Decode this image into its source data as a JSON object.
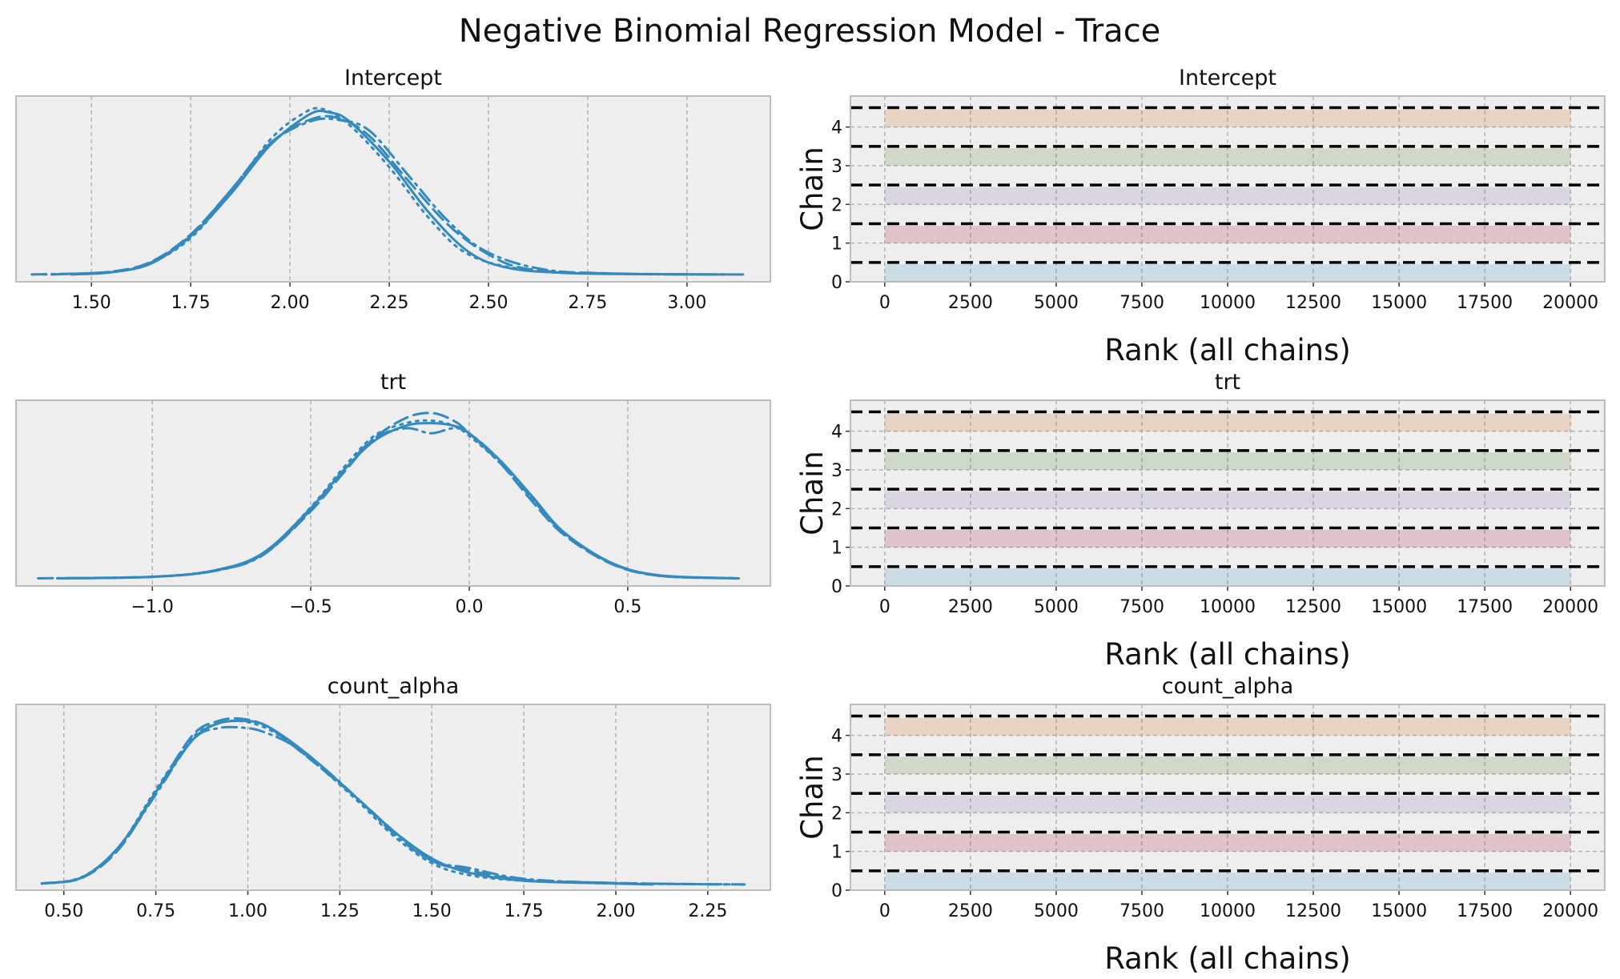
{
  "title": "Negative Binomial Regression Model - Trace",
  "colors": {
    "kde": "#348abd",
    "panel_bg": "#eeeeee",
    "grid": "#b2b2b2",
    "spine": "#bcbcbc",
    "ref_line": "#000000",
    "chain_colors": [
      "#348abd",
      "#a60628",
      "#7a68a6",
      "#467821",
      "#d55e00"
    ]
  },
  "chart_data": [
    {
      "type": "line",
      "title": "Intercept",
      "panel": "posterior-density",
      "xlim": [
        1.31,
        3.21
      ],
      "ylim": [
        -0.2,
        4.9
      ],
      "xticks": [
        1.5,
        1.75,
        2.0,
        2.25,
        2.5,
        2.75,
        3.0
      ],
      "xtick_labels": [
        "1.50",
        "1.75",
        "2.00",
        "2.25",
        "2.50",
        "2.75",
        "3.00"
      ],
      "y_axis_visible": false,
      "grid": "x",
      "series": [
        {
          "chain": 0,
          "linestyle": "solid",
          "x": [
            1.45,
            1.55,
            1.65,
            1.75,
            1.85,
            1.95,
            2.05,
            2.1,
            2.15,
            2.25,
            2.35,
            2.45,
            2.55,
            2.7,
            2.9,
            3.1
          ],
          "y": [
            0.0,
            0.06,
            0.3,
            1.05,
            2.2,
            3.55,
            4.4,
            4.45,
            4.2,
            3.1,
            1.7,
            0.62,
            0.18,
            0.04,
            0.01,
            0.0
          ]
        },
        {
          "chain": 1,
          "linestyle": "dashed",
          "x": [
            1.4,
            1.55,
            1.65,
            1.75,
            1.85,
            1.95,
            2.05,
            2.12,
            2.2,
            2.3,
            2.4,
            2.5,
            2.6,
            2.8,
            3.0
          ],
          "y": [
            0.0,
            0.08,
            0.35,
            1.1,
            2.3,
            3.6,
            4.25,
            4.3,
            3.8,
            2.55,
            1.35,
            0.55,
            0.15,
            0.03,
            0.0
          ]
        },
        {
          "chain": 2,
          "linestyle": "dotted",
          "x": [
            1.38,
            1.55,
            1.65,
            1.75,
            1.85,
            1.95,
            2.03,
            2.08,
            2.15,
            2.25,
            2.35,
            2.45,
            2.6,
            2.8,
            3.1
          ],
          "y": [
            0.0,
            0.07,
            0.32,
            1.0,
            2.25,
            3.7,
            4.4,
            4.55,
            4.1,
            2.95,
            1.55,
            0.55,
            0.12,
            0.02,
            0.0
          ]
        },
        {
          "chain": 3,
          "linestyle": "dashdot",
          "x": [
            1.35,
            1.55,
            1.65,
            1.75,
            1.85,
            1.95,
            2.05,
            2.12,
            2.2,
            2.3,
            2.4,
            2.5,
            2.65,
            2.85,
            3.15
          ],
          "y": [
            0.0,
            0.07,
            0.33,
            1.08,
            2.3,
            3.6,
            4.2,
            4.25,
            3.95,
            2.7,
            1.45,
            0.6,
            0.12,
            0.02,
            0.0
          ]
        }
      ]
    },
    {
      "type": "bar",
      "title": "Intercept",
      "panel": "rank-plot",
      "xlabel": "Rank (all chains)",
      "ylabel": "Chain",
      "xlim": [
        -1000,
        21000
      ],
      "ylim": [
        0,
        4.8
      ],
      "xticks": [
        0,
        2500,
        5000,
        7500,
        10000,
        12500,
        15000,
        17500,
        20000
      ],
      "yticks": [
        0,
        1,
        2,
        3,
        4
      ],
      "chains": [
        0,
        1,
        2,
        3,
        4
      ],
      "rank_range": [
        0,
        20000
      ],
      "reference_lines_y": [
        0.5,
        1.5,
        2.5,
        3.5,
        4.5
      ],
      "grid": "both"
    },
    {
      "type": "line",
      "title": "trt",
      "panel": "posterior-density",
      "xlim": [
        -1.43,
        0.95
      ],
      "ylim": [
        -0.15,
        3.5
      ],
      "xticks": [
        -1.0,
        -0.5,
        0.0,
        0.5
      ],
      "xtick_labels": [
        "−1.0",
        "−0.5",
        "0.0",
        "0.5"
      ],
      "y_axis_visible": false,
      "grid": "x",
      "series": [
        {
          "chain": 0,
          "linestyle": "solid",
          "x": [
            -1.3,
            -1.0,
            -0.8,
            -0.65,
            -0.5,
            -0.4,
            -0.3,
            -0.2,
            -0.12,
            -0.05,
            0.0,
            0.1,
            0.2,
            0.3,
            0.45,
            0.6,
            0.85
          ],
          "y": [
            0.0,
            0.03,
            0.16,
            0.5,
            1.38,
            2.1,
            2.7,
            3.0,
            3.05,
            3.0,
            2.85,
            2.3,
            1.6,
            0.9,
            0.3,
            0.06,
            0.0
          ]
        },
        {
          "chain": 1,
          "linestyle": "dashed",
          "x": [
            -1.3,
            -1.0,
            -0.8,
            -0.65,
            -0.5,
            -0.4,
            -0.3,
            -0.2,
            -0.12,
            -0.05,
            0.0,
            0.1,
            0.2,
            0.3,
            0.45,
            0.6,
            0.85
          ],
          "y": [
            0.0,
            0.03,
            0.15,
            0.47,
            1.32,
            2.05,
            2.75,
            3.15,
            3.25,
            3.1,
            2.85,
            2.25,
            1.5,
            0.85,
            0.28,
            0.05,
            0.0
          ]
        },
        {
          "chain": 2,
          "linestyle": "dotted",
          "x": [
            -1.3,
            -1.0,
            -0.8,
            -0.65,
            -0.5,
            -0.4,
            -0.3,
            -0.2,
            -0.12,
            -0.05,
            0.0,
            0.1,
            0.2,
            0.3,
            0.45,
            0.6,
            0.85
          ],
          "y": [
            0.0,
            0.03,
            0.16,
            0.48,
            1.4,
            2.15,
            2.8,
            3.05,
            3.1,
            3.0,
            2.8,
            2.25,
            1.55,
            0.88,
            0.3,
            0.06,
            0.0
          ]
        },
        {
          "chain": 3,
          "linestyle": "dashdot",
          "x": [
            -1.36,
            -1.0,
            -0.8,
            -0.65,
            -0.5,
            -0.4,
            -0.3,
            -0.2,
            -0.12,
            -0.05,
            0.0,
            0.1,
            0.2,
            0.3,
            0.45,
            0.6,
            0.85
          ],
          "y": [
            0.0,
            0.03,
            0.15,
            0.46,
            1.35,
            2.1,
            2.75,
            2.95,
            2.85,
            2.95,
            2.85,
            2.3,
            1.55,
            0.88,
            0.29,
            0.05,
            0.0
          ]
        }
      ]
    },
    {
      "type": "bar",
      "title": "trt",
      "panel": "rank-plot",
      "xlabel": "Rank (all chains)",
      "ylabel": "Chain",
      "xlim": [
        -1000,
        21000
      ],
      "ylim": [
        0,
        4.8
      ],
      "xticks": [
        0,
        2500,
        5000,
        7500,
        10000,
        12500,
        15000,
        17500,
        20000
      ],
      "yticks": [
        0,
        1,
        2,
        3,
        4
      ],
      "chains": [
        0,
        1,
        2,
        3,
        4
      ],
      "rank_range": [
        0,
        20000
      ],
      "reference_lines_y": [
        0.5,
        1.5,
        2.5,
        3.5,
        4.5
      ],
      "grid": "both"
    },
    {
      "type": "line",
      "title": "count_alpha",
      "panel": "posterior-density",
      "xlim": [
        0.37,
        2.42
      ],
      "ylim": [
        -0.12,
        3.8
      ],
      "xticks": [
        0.5,
        0.75,
        1.0,
        1.25,
        1.5,
        1.75,
        2.0,
        2.25
      ],
      "xtick_labels": [
        "0.50",
        "0.75",
        "1.00",
        "1.25",
        "1.50",
        "1.75",
        "2.00",
        "2.25"
      ],
      "y_axis_visible": false,
      "grid": "x",
      "series": [
        {
          "chain": 0,
          "linestyle": "solid",
          "x": [
            0.44,
            0.55,
            0.65,
            0.75,
            0.85,
            0.92,
            1.0,
            1.05,
            1.12,
            1.2,
            1.3,
            1.4,
            1.5,
            1.6,
            1.75,
            2.0,
            2.1
          ],
          "y": [
            0.02,
            0.15,
            0.8,
            1.95,
            3.05,
            3.4,
            3.45,
            3.35,
            3.0,
            2.5,
            1.8,
            1.1,
            0.55,
            0.25,
            0.08,
            0.02,
            0.0
          ]
        },
        {
          "chain": 1,
          "linestyle": "dashed",
          "x": [
            0.44,
            0.55,
            0.65,
            0.75,
            0.85,
            0.92,
            0.98,
            1.05,
            1.12,
            1.2,
            1.3,
            1.4,
            1.5,
            1.6,
            1.75,
            2.0,
            2.3
          ],
          "y": [
            0.02,
            0.14,
            0.75,
            1.95,
            3.15,
            3.45,
            3.5,
            3.35,
            2.95,
            2.45,
            1.8,
            1.1,
            0.5,
            0.3,
            0.1,
            0.03,
            0.0
          ]
        },
        {
          "chain": 2,
          "linestyle": "dotted",
          "x": [
            0.44,
            0.55,
            0.65,
            0.75,
            0.85,
            0.92,
            0.98,
            1.05,
            1.12,
            1.2,
            1.3,
            1.4,
            1.5,
            1.6,
            1.75,
            2.0,
            2.35
          ],
          "y": [
            0.02,
            0.16,
            0.8,
            2.0,
            3.1,
            3.4,
            3.45,
            3.3,
            2.95,
            2.45,
            1.75,
            1.0,
            0.45,
            0.2,
            0.08,
            0.02,
            0.0
          ]
        },
        {
          "chain": 3,
          "linestyle": "dashdot",
          "x": [
            0.44,
            0.55,
            0.65,
            0.75,
            0.85,
            0.92,
            1.0,
            1.05,
            1.12,
            1.2,
            1.3,
            1.4,
            1.5,
            1.6,
            1.75,
            2.0,
            2.35
          ],
          "y": [
            0.02,
            0.15,
            0.78,
            1.9,
            3.05,
            3.3,
            3.3,
            3.2,
            2.95,
            2.5,
            1.8,
            1.05,
            0.5,
            0.35,
            0.12,
            0.03,
            0.0
          ]
        }
      ]
    },
    {
      "type": "bar",
      "title": "count_alpha",
      "panel": "rank-plot",
      "xlabel": "Rank (all chains)",
      "ylabel": "Chain",
      "xlim": [
        -1000,
        21000
      ],
      "ylim": [
        0,
        4.8
      ],
      "xticks": [
        0,
        2500,
        5000,
        7500,
        10000,
        12500,
        15000,
        17500,
        20000
      ],
      "yticks": [
        0,
        1,
        2,
        3,
        4
      ],
      "chains": [
        0,
        1,
        2,
        3,
        4
      ],
      "rank_range": [
        0,
        20000
      ],
      "reference_lines_y": [
        0.5,
        1.5,
        2.5,
        3.5,
        4.5
      ],
      "grid": "both"
    }
  ]
}
